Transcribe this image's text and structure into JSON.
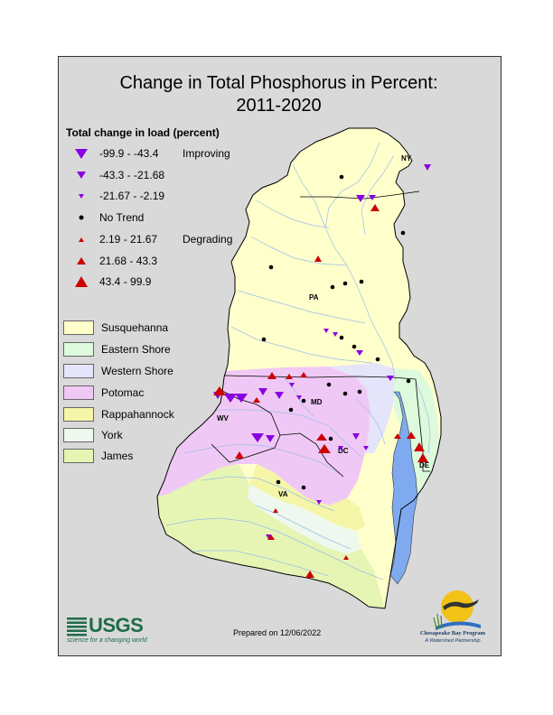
{
  "title": {
    "line1": "Change in Total Phosphorus in Percent:",
    "line2": "2011-2020"
  },
  "legend": {
    "heading": "Total change in load (percent)",
    "classes": [
      {
        "label": "-99.9 - -43.4",
        "side": "Improving",
        "symbol": "down-triangle-large",
        "color": "#8a00e0"
      },
      {
        "label": "-43.3 - -21.68",
        "side": "",
        "symbol": "down-triangle-medium",
        "color": "#8a00e0"
      },
      {
        "label": "-21.67 - -2.19",
        "side": "",
        "symbol": "down-triangle-small",
        "color": "#8a00e0"
      },
      {
        "label": "No Trend",
        "side": "",
        "symbol": "dot",
        "color": "#000000"
      },
      {
        "label": "2.19 - 21.67",
        "side": "Degrading",
        "symbol": "up-triangle-small",
        "color": "#cc0000"
      },
      {
        "label": "21.68 - 43.3",
        "side": "",
        "symbol": "up-triangle-medium",
        "color": "#cc0000"
      },
      {
        "label": "43.4 - 99.9",
        "side": "",
        "symbol": "up-triangle-large",
        "color": "#cc0000"
      }
    ],
    "basins": [
      {
        "label": "Susquehanna",
        "color": "#ffffcc"
      },
      {
        "label": "Eastern Shore",
        "color": "#ddfadd"
      },
      {
        "label": "Western Shore",
        "color": "#e4e4fa"
      },
      {
        "label": "Potomac",
        "color": "#f0c8f5"
      },
      {
        "label": "Rappahannock",
        "color": "#f5f5a8"
      },
      {
        "label": "York",
        "color": "#eef8ee"
      },
      {
        "label": "James",
        "color": "#e6f5b4"
      }
    ]
  },
  "map": {
    "state_labels": [
      "NY",
      "PA",
      "MD",
      "WV",
      "DC",
      "DE",
      "VA"
    ],
    "water_color": "#7faaf0",
    "river_color": "#9bbde8"
  },
  "credits": {
    "usgs_logo": "USGS",
    "usgs_tagline": "science for a changing world",
    "prepared": "Prepared on 12/06/2022",
    "cbp_name": "Chesapeake Bay Program",
    "cbp_tagline": "A Watershed Partnership"
  }
}
